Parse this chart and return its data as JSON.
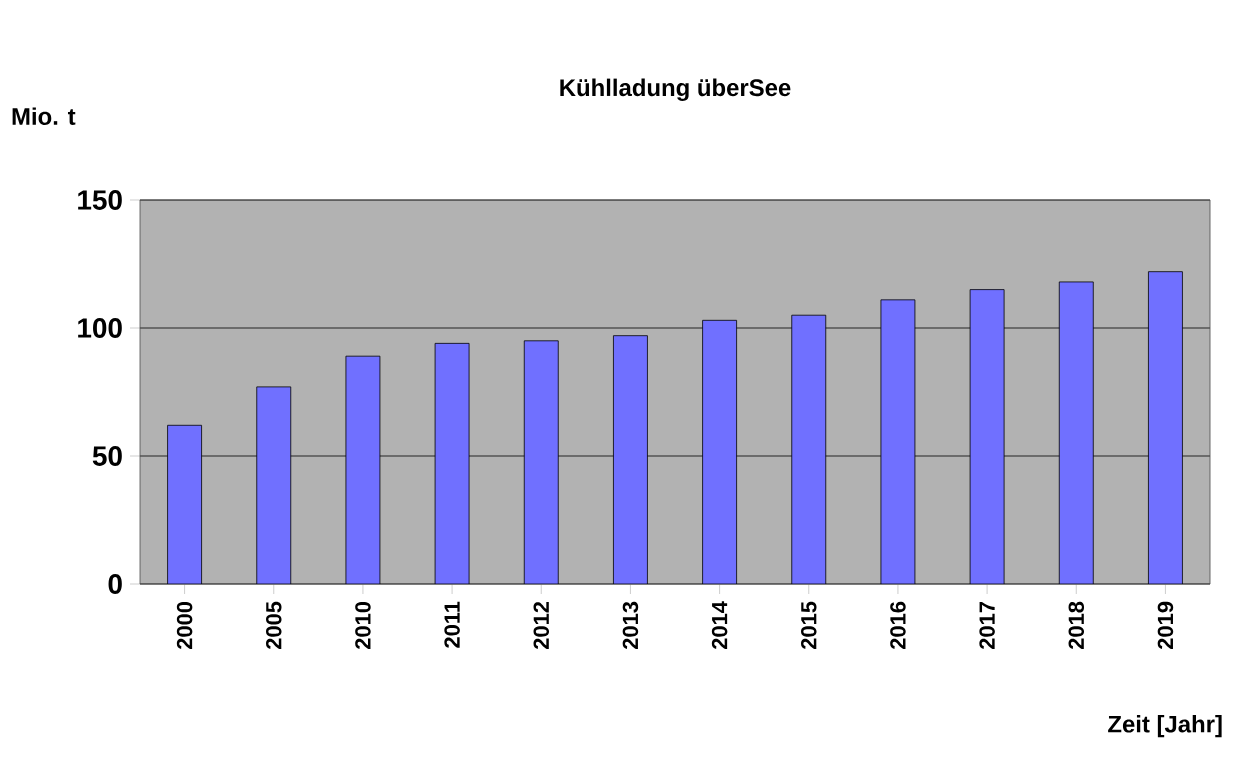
{
  "chart_data": {
    "type": "bar",
    "title": "Kühlladung überSee",
    "ylabel": "Mio. t",
    "xlabel": "Zeit [Jahr]",
    "categories": [
      "2000",
      "2005",
      "2010",
      "2011",
      "2012",
      "2013",
      "2014",
      "2015",
      "2016",
      "2017",
      "2018",
      "2019"
    ],
    "values": [
      62,
      77,
      89,
      94,
      95,
      97,
      103,
      105,
      111,
      115,
      118,
      122
    ],
    "color": "#7070ff",
    "ylim": [
      0,
      150
    ],
    "yticks": [
      0,
      50,
      100,
      150
    ],
    "grid": "y"
  }
}
